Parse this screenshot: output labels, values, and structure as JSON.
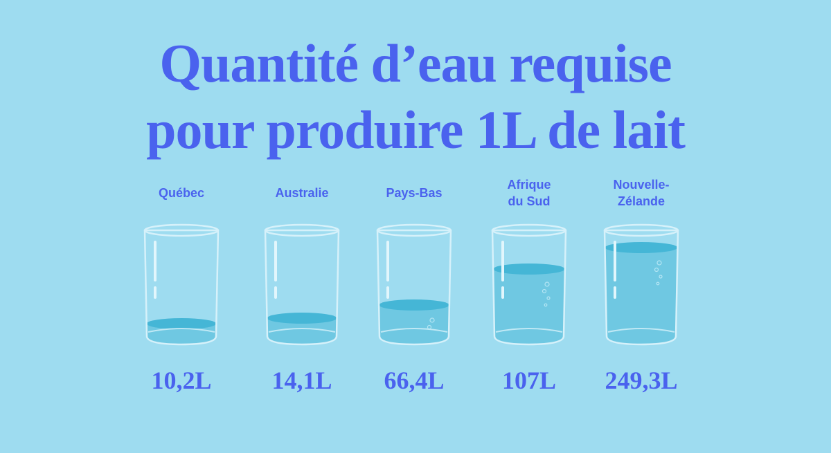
{
  "title_lines": [
    "Quantité d’eau requise",
    "pour produire 1L de lait"
  ],
  "items": [
    {
      "label": [
        "Québec"
      ],
      "value": "10,2L"
    },
    {
      "label": [
        "Australie"
      ],
      "value": "14,1L"
    },
    {
      "label": [
        "Pays-Bas"
      ],
      "value": "66,4L"
    },
    {
      "label": [
        "Afrique",
        "du Sud"
      ],
      "value": "107L"
    },
    {
      "label": [
        "Nouvelle-",
        "Zélande"
      ],
      "value": "249,3L"
    }
  ]
}
